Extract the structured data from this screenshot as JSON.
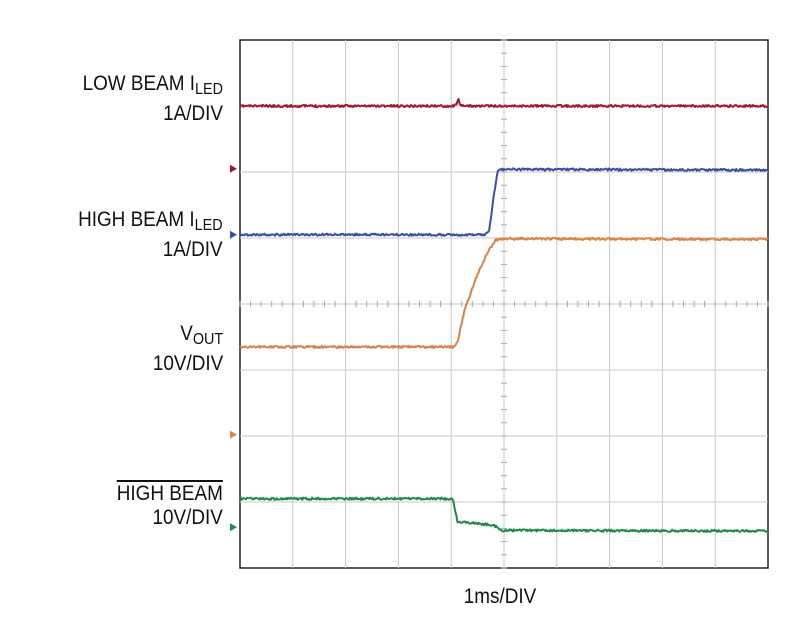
{
  "chart_data": {
    "type": "line",
    "xlabel": "1ms/DIV",
    "x_divisions": 10,
    "y_divisions": 8,
    "grid": true,
    "channels": [
      {
        "key": "low",
        "label_main": "LOW BEAM I",
        "label_sub": "LED",
        "label_scale": "1A/DIV",
        "color": "#a3172f",
        "marker_div": 6.05,
        "points": [
          [
            0,
            7.0
          ],
          [
            4.06,
            7.0
          ],
          [
            4.1,
            7.04
          ],
          [
            4.14,
            7.12
          ],
          [
            4.17,
            7.0
          ],
          [
            4.25,
            7.0
          ],
          [
            10,
            7.0
          ]
        ]
      },
      {
        "key": "high",
        "label_main": "HIGH BEAM I",
        "label_sub": "LED",
        "label_scale": "1A/DIV",
        "color": "#3a4fa4",
        "marker_div": 5.05,
        "points": [
          [
            0,
            5.05
          ],
          [
            4.65,
            5.05
          ],
          [
            4.72,
            5.12
          ],
          [
            4.8,
            5.6
          ],
          [
            4.88,
            6.0
          ],
          [
            4.95,
            6.04
          ],
          [
            10,
            6.03
          ]
        ]
      },
      {
        "key": "vout",
        "label_main": "V",
        "label_sub": "OUT",
        "label_scale": "10V/DIV",
        "color": "#d98447",
        "marker_div": 2.02,
        "points": [
          [
            0,
            3.35
          ],
          [
            4.05,
            3.35
          ],
          [
            4.12,
            3.42
          ],
          [
            4.25,
            3.9
          ],
          [
            4.5,
            4.45
          ],
          [
            4.7,
            4.8
          ],
          [
            4.85,
            4.97
          ],
          [
            5.0,
            4.99
          ],
          [
            10,
            4.98
          ]
        ]
      },
      {
        "key": "hb",
        "label_main": "HIGH BEAM",
        "label_sub": "",
        "label_scale": "10V/DIV",
        "color": "#1f8a4c",
        "marker_div": 0.62,
        "points": [
          [
            0,
            1.05
          ],
          [
            4.03,
            1.05
          ],
          [
            4.08,
            0.85
          ],
          [
            4.12,
            0.7
          ],
          [
            4.8,
            0.65
          ],
          [
            4.95,
            0.57
          ],
          [
            10,
            0.56
          ]
        ]
      }
    ]
  }
}
